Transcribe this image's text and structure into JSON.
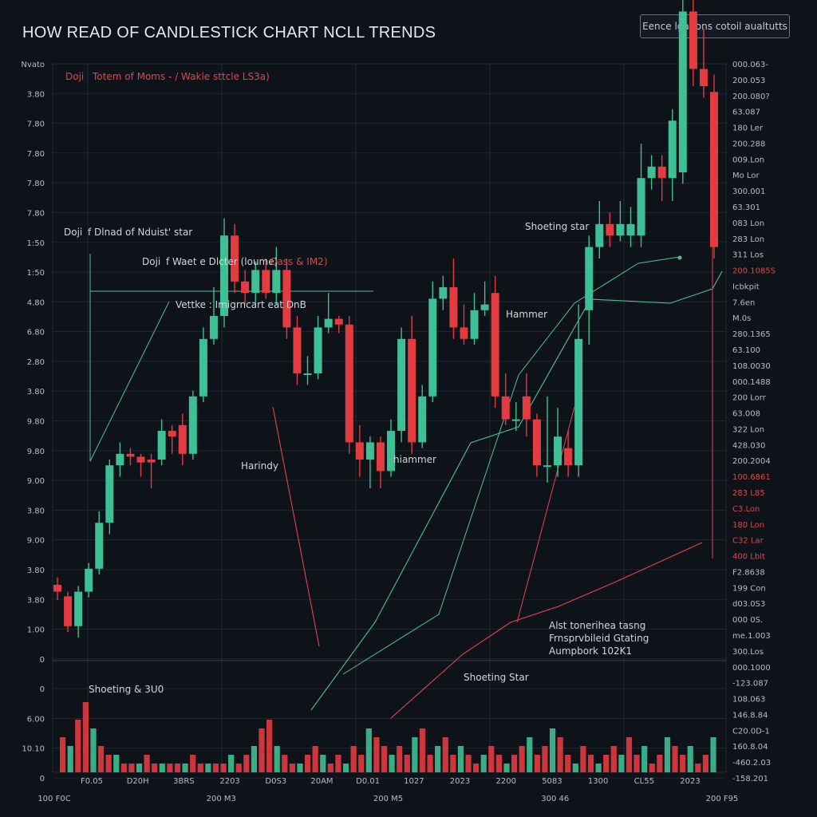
{
  "header": {
    "title": "HOW READ OF CANDLESTICK CHART NCLL TRENDS",
    "button_label": "Eence lgations cotoil aualtutts"
  },
  "colors": {
    "background": "#0e1219",
    "bull": "#3fbf94",
    "bear": "#e23b40",
    "grid": "#232a35",
    "line_green": "#4fbf9c",
    "line_red": "#e0454a"
  },
  "chart_data": {
    "type": "candlestick",
    "title": "HOW READ OF CANDLESTICK CHART NCLL TRENDS",
    "grid": true,
    "y_axis_left": {
      "ticks": [
        "Nvato",
        "3.80",
        "7.80",
        "7.80",
        "7.80",
        "7.80",
        "1:50",
        "1:50",
        "4.80",
        "6.80",
        "2.80",
        "3.80",
        "9.80",
        "9.80",
        "9.00",
        "3.80",
        "9.00",
        "3.80",
        "3.80",
        "1.00",
        "0",
        "0",
        "6.00",
        "10.10",
        "0"
      ]
    },
    "y_axis_right": {
      "ticks": [
        {
          "label": "000.063-",
          "red": false
        },
        {
          "label": "200.053",
          "red": false
        },
        {
          "label": "200.080?",
          "red": false
        },
        {
          "label": "63.087",
          "red": false
        },
        {
          "label": "180 Ler",
          "red": false
        },
        {
          "label": "200.288",
          "red": false
        },
        {
          "label": "009.Lon",
          "red": false
        },
        {
          "label": "Mo Lor",
          "red": false
        },
        {
          "label": "300.001",
          "red": false
        },
        {
          "label": "63.301",
          "red": false
        },
        {
          "label": "083 Lon",
          "red": false
        },
        {
          "label": "283 Lon",
          "red": false
        },
        {
          "label": "311 Los",
          "red": false
        },
        {
          "label": "200.1085S",
          "red": true
        },
        {
          "label": "Icbkpit",
          "red": false
        },
        {
          "label": "7.6en",
          "red": false
        },
        {
          "label": "M.0s",
          "red": false
        },
        {
          "label": "280.1365",
          "red": false
        },
        {
          "label": "63.100",
          "red": false
        },
        {
          "label": "108.0030",
          "red": false
        },
        {
          "label": "000.1488",
          "red": false
        },
        {
          "label": "200 Lorr",
          "red": false
        },
        {
          "label": "63.008",
          "red": false
        },
        {
          "label": "322 Lon",
          "red": false
        },
        {
          "label": "428.030",
          "red": false
        },
        {
          "label": "200.2004",
          "red": false
        },
        {
          "label": "100.6861",
          "red": true
        },
        {
          "label": "283 L85",
          "red": true
        },
        {
          "label": "C3.Lon",
          "red": true
        },
        {
          "label": "180 Lon",
          "red": true
        },
        {
          "label": "C32 Lar",
          "red": true
        },
        {
          "label": "400 Lblt",
          "red": true
        },
        {
          "label": "F2.8638",
          "red": false
        },
        {
          "label": "199 Con",
          "red": false
        },
        {
          "label": "d03.0S3",
          "red": false
        },
        {
          "label": "000 0S.",
          "red": false
        },
        {
          "label": "me.1.003",
          "red": false
        },
        {
          "label": "300.Los",
          "red": false
        },
        {
          "label": "000.1000",
          "red": false
        },
        {
          "label": "-123.087",
          "red": false
        },
        {
          "label": "108.063",
          "red": false
        },
        {
          "label": "146.8.84",
          "red": false
        },
        {
          "label": "C20.0D-1",
          "red": false
        },
        {
          "label": "160.8.04",
          "red": false
        },
        {
          "label": "-460.2.03",
          "red": false
        },
        {
          "label": "-158.201",
          "red": false
        }
      ]
    },
    "x_axis": {
      "inner_ticks": [
        "F0.05",
        "D20H",
        "3BRS",
        "2203",
        "D0S3",
        "20AM",
        "D0.01",
        "1027",
        "2023",
        "2200",
        "5083",
        "1300",
        "CL55",
        "2023"
      ],
      "outer_ticks": [
        "100 F0C",
        "200 M3",
        "200 M5",
        "300 46",
        "200 F95"
      ]
    },
    "annotations": [
      {
        "text": "Doji",
        "red": true
      },
      {
        "text": "Totem of Moms - / Wakle sttcle LS3a)",
        "red": true
      },
      {
        "text": "Doji",
        "red": false
      },
      {
        "text": "f Dlnad of Nduist' star",
        "red": false
      },
      {
        "text": "Doji",
        "red": false
      },
      {
        "text": "f Waet e Dlcter (loume)",
        "red": false
      },
      {
        "text": "Oass & IM2)",
        "red": true
      },
      {
        "text": "Vettke : Imigrncart eat DnB",
        "red": false
      },
      {
        "text": "Harindy",
        "red": false
      },
      {
        "text": "hiammer",
        "red": false
      },
      {
        "text": "Hammer",
        "red": false
      },
      {
        "text": "Shoeting star",
        "red": false
      },
      {
        "text": "Shoeting & 3U0",
        "red": false
      },
      {
        "text": "Shoeting Star",
        "red": false
      },
      {
        "text": "Alst tonerihea tasng",
        "red": false
      },
      {
        "text": "Frnsprvbileid Gtating",
        "red": false
      },
      {
        "text": "Aumpbork 102K1",
        "red": false
      }
    ],
    "candles": [
      {
        "open": 1.32,
        "close": 1.2,
        "high": 1.45,
        "low": 1.05
      },
      {
        "open": 1.12,
        "close": 0.6,
        "high": 1.2,
        "low": 0.5
      },
      {
        "open": 0.6,
        "close": 1.2,
        "high": 1.3,
        "low": 0.4
      },
      {
        "open": 1.2,
        "close": 1.6,
        "high": 1.7,
        "low": 1.1
      },
      {
        "open": 1.6,
        "close": 2.4,
        "high": 2.6,
        "low": 1.5
      },
      {
        "open": 2.4,
        "close": 3.4,
        "high": 3.5,
        "low": 2.2
      },
      {
        "open": 3.4,
        "close": 3.6,
        "high": 3.8,
        "low": 3.2
      },
      {
        "open": 3.6,
        "close": 3.55,
        "high": 3.7,
        "low": 3.4
      },
      {
        "open": 3.55,
        "close": 3.45,
        "high": 3.6,
        "low": 3.2
      },
      {
        "open": 3.5,
        "close": 3.45,
        "high": 3.6,
        "low": 3.0
      },
      {
        "open": 3.5,
        "close": 4.0,
        "high": 4.2,
        "low": 3.4
      },
      {
        "open": 4.0,
        "close": 3.9,
        "high": 4.1,
        "low": 3.6
      },
      {
        "open": 4.1,
        "close": 3.6,
        "high": 4.3,
        "low": 3.4
      },
      {
        "open": 3.6,
        "close": 4.6,
        "high": 4.7,
        "low": 3.5
      },
      {
        "open": 4.6,
        "close": 5.6,
        "high": 5.8,
        "low": 4.5
      },
      {
        "open": 5.6,
        "close": 6.0,
        "high": 6.5,
        "low": 5.5
      },
      {
        "open": 6.0,
        "close": 7.4,
        "high": 7.7,
        "low": 5.8
      },
      {
        "open": 7.4,
        "close": 6.6,
        "high": 7.6,
        "low": 6.4
      },
      {
        "open": 6.6,
        "close": 6.4,
        "high": 6.8,
        "low": 6.2
      },
      {
        "open": 6.4,
        "close": 6.8,
        "high": 6.95,
        "low": 6.2
      },
      {
        "open": 6.8,
        "close": 6.4,
        "high": 7.0,
        "low": 6.3
      },
      {
        "open": 6.4,
        "close": 6.8,
        "high": 7.2,
        "low": 6.2
      },
      {
        "open": 6.8,
        "close": 5.8,
        "high": 7.0,
        "low": 5.6
      },
      {
        "open": 5.8,
        "close": 5.0,
        "high": 6.0,
        "low": 4.8
      },
      {
        "open": 5.0,
        "close": 5.0,
        "high": 5.3,
        "low": 4.8
      },
      {
        "open": 5.0,
        "close": 5.8,
        "high": 6.0,
        "low": 4.9
      },
      {
        "open": 5.8,
        "close": 5.95,
        "high": 6.4,
        "low": 5.7
      },
      {
        "open": 5.95,
        "close": 5.85,
        "high": 6.0,
        "low": 5.7
      },
      {
        "open": 5.85,
        "close": 3.8,
        "high": 6.0,
        "low": 3.6
      },
      {
        "open": 3.8,
        "close": 3.5,
        "high": 4.1,
        "low": 3.2
      },
      {
        "open": 3.5,
        "close": 3.8,
        "high": 3.9,
        "low": 3.0
      },
      {
        "open": 3.8,
        "close": 3.3,
        "high": 3.9,
        "low": 3.0
      },
      {
        "open": 3.3,
        "close": 4.0,
        "high": 4.2,
        "low": 3.2
      },
      {
        "open": 4.0,
        "close": 5.6,
        "high": 5.8,
        "low": 3.8
      },
      {
        "open": 5.6,
        "close": 3.8,
        "high": 6.0,
        "low": 3.6
      },
      {
        "open": 3.8,
        "close": 4.6,
        "high": 4.8,
        "low": 3.7
      },
      {
        "open": 4.6,
        "close": 6.3,
        "high": 6.6,
        "low": 4.5
      },
      {
        "open": 6.3,
        "close": 6.5,
        "high": 6.7,
        "low": 6.1
      },
      {
        "open": 6.5,
        "close": 5.8,
        "high": 7.0,
        "low": 5.6
      },
      {
        "open": 5.8,
        "close": 5.6,
        "high": 6.2,
        "low": 5.5
      },
      {
        "open": 5.6,
        "close": 6.1,
        "high": 6.4,
        "low": 5.5
      },
      {
        "open": 6.1,
        "close": 6.2,
        "high": 6.6,
        "low": 6.0
      },
      {
        "open": 6.4,
        "close": 4.6,
        "high": 6.7,
        "low": 4.4
      },
      {
        "open": 4.6,
        "close": 4.2,
        "high": 5.0,
        "low": 4.1
      },
      {
        "open": 4.2,
        "close": 4.2,
        "high": 4.5,
        "low": 4.0
      },
      {
        "open": 4.6,
        "close": 4.2,
        "high": 5.0,
        "low": 3.9
      },
      {
        "open": 4.2,
        "close": 3.4,
        "high": 4.3,
        "low": 3.2
      },
      {
        "open": 3.4,
        "close": 3.4,
        "high": 4.6,
        "low": 3.1
      },
      {
        "open": 3.4,
        "close": 3.9,
        "high": 4.4,
        "low": 3.2
      },
      {
        "open": 3.7,
        "close": 3.4,
        "high": 4.0,
        "low": 3.2
      },
      {
        "open": 3.4,
        "close": 5.6,
        "high": 6.2,
        "low": 3.2
      },
      {
        "open": 6.1,
        "close": 7.2,
        "high": 7.4,
        "low": 5.5
      },
      {
        "open": 7.2,
        "close": 7.6,
        "high": 8.0,
        "low": 7.0
      },
      {
        "open": 7.6,
        "close": 7.4,
        "high": 7.8,
        "low": 7.2
      },
      {
        "open": 7.4,
        "close": 7.6,
        "high": 8.0,
        "low": 7.3
      },
      {
        "open": 7.4,
        "close": 7.6,
        "high": 7.9,
        "low": 7.2
      },
      {
        "open": 7.4,
        "close": 8.4,
        "high": 9.0,
        "low": 7.2
      },
      {
        "open": 8.4,
        "close": 8.6,
        "high": 8.8,
        "low": 8.2
      },
      {
        "open": 8.6,
        "close": 8.4,
        "high": 8.8,
        "low": 8.0
      },
      {
        "open": 8.4,
        "close": 9.4,
        "high": 9.6,
        "low": 8.0
      },
      {
        "open": 8.5,
        "close": 11.3,
        "high": 12.0,
        "low": 8.3
      },
      {
        "open": 11.3,
        "close": 10.3,
        "high": 11.6,
        "low": 10.0
      },
      {
        "open": 10.3,
        "close": 10.0,
        "high": 11.0,
        "low": 9.8
      },
      {
        "open": 9.9,
        "close": 7.2,
        "high": 10.2,
        "low": 7.0
      }
    ],
    "volume": [
      4,
      3,
      6,
      8,
      5,
      3,
      2,
      2,
      1,
      1,
      1,
      2,
      1,
      1,
      1,
      1,
      1,
      2,
      1,
      1,
      1,
      1,
      2,
      1,
      2,
      3,
      5,
      6,
      3,
      2,
      1,
      1,
      2,
      3,
      2,
      1,
      2,
      1,
      3,
      2,
      5,
      4,
      3,
      2,
      3,
      2,
      4,
      5,
      2,
      3,
      4,
      2,
      3,
      2,
      1,
      2,
      3,
      2,
      1,
      2,
      3,
      4,
      2,
      3,
      5,
      4,
      2,
      1,
      3,
      2,
      1,
      2,
      3,
      2,
      4,
      2,
      3,
      1,
      2,
      4,
      3,
      2,
      3,
      1,
      2,
      4
    ]
  }
}
